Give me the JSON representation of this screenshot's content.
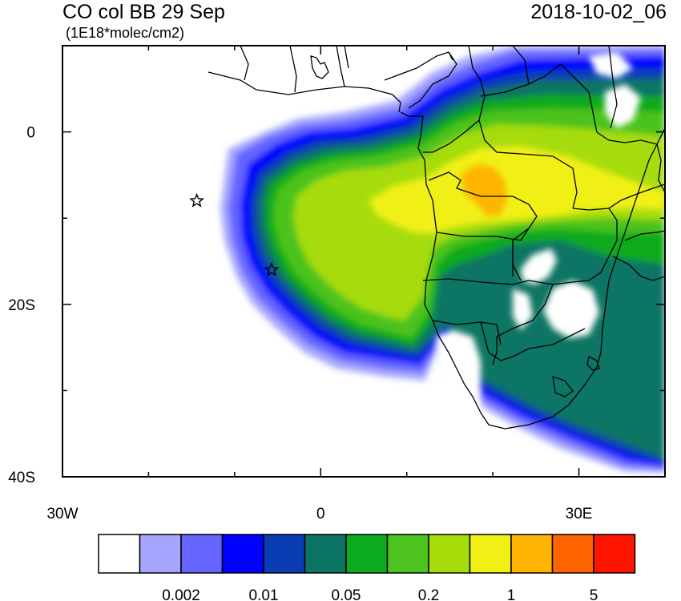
{
  "title": "CO col BB 29 Sep",
  "units": "(1E18*molec/cm2)",
  "datetime": "2018-10-02_06",
  "axes": {
    "y_labels": [
      {
        "lat": 0,
        "label": "0"
      },
      {
        "lat": -20,
        "label": "20S"
      },
      {
        "lat": -40,
        "label": "40S"
      }
    ],
    "x_labels": [
      {
        "lon": -30,
        "label": "30W"
      },
      {
        "lon": 0,
        "label": "0"
      },
      {
        "lon": 30,
        "label": "30E"
      }
    ],
    "lon_range": [
      -30,
      40
    ],
    "lat_range": [
      -40,
      10
    ]
  },
  "colorbar": {
    "colors": [
      "#ffffff",
      "#a6a6ff",
      "#6464ff",
      "#0000ff",
      "#0a3cb4",
      "#0c7464",
      "#0caa1e",
      "#4cc31e",
      "#a6dc0a",
      "#f0f014",
      "#ffb400",
      "#ff6400",
      "#ff1400"
    ],
    "labels": [
      {
        "after_box": 2,
        "text": "0.002"
      },
      {
        "after_box": 4,
        "text": "0.01"
      },
      {
        "after_box": 6,
        "text": "0.05"
      },
      {
        "after_box": 8,
        "text": "0.2"
      },
      {
        "after_box": 10,
        "text": "1"
      },
      {
        "after_box": 12,
        "text": "5"
      }
    ]
  },
  "markers": [
    {
      "name": "star-marker-1",
      "lon": -14.4,
      "lat": -8
    },
    {
      "name": "star-marker-2",
      "lon": -5.7,
      "lat": -16
    }
  ]
}
